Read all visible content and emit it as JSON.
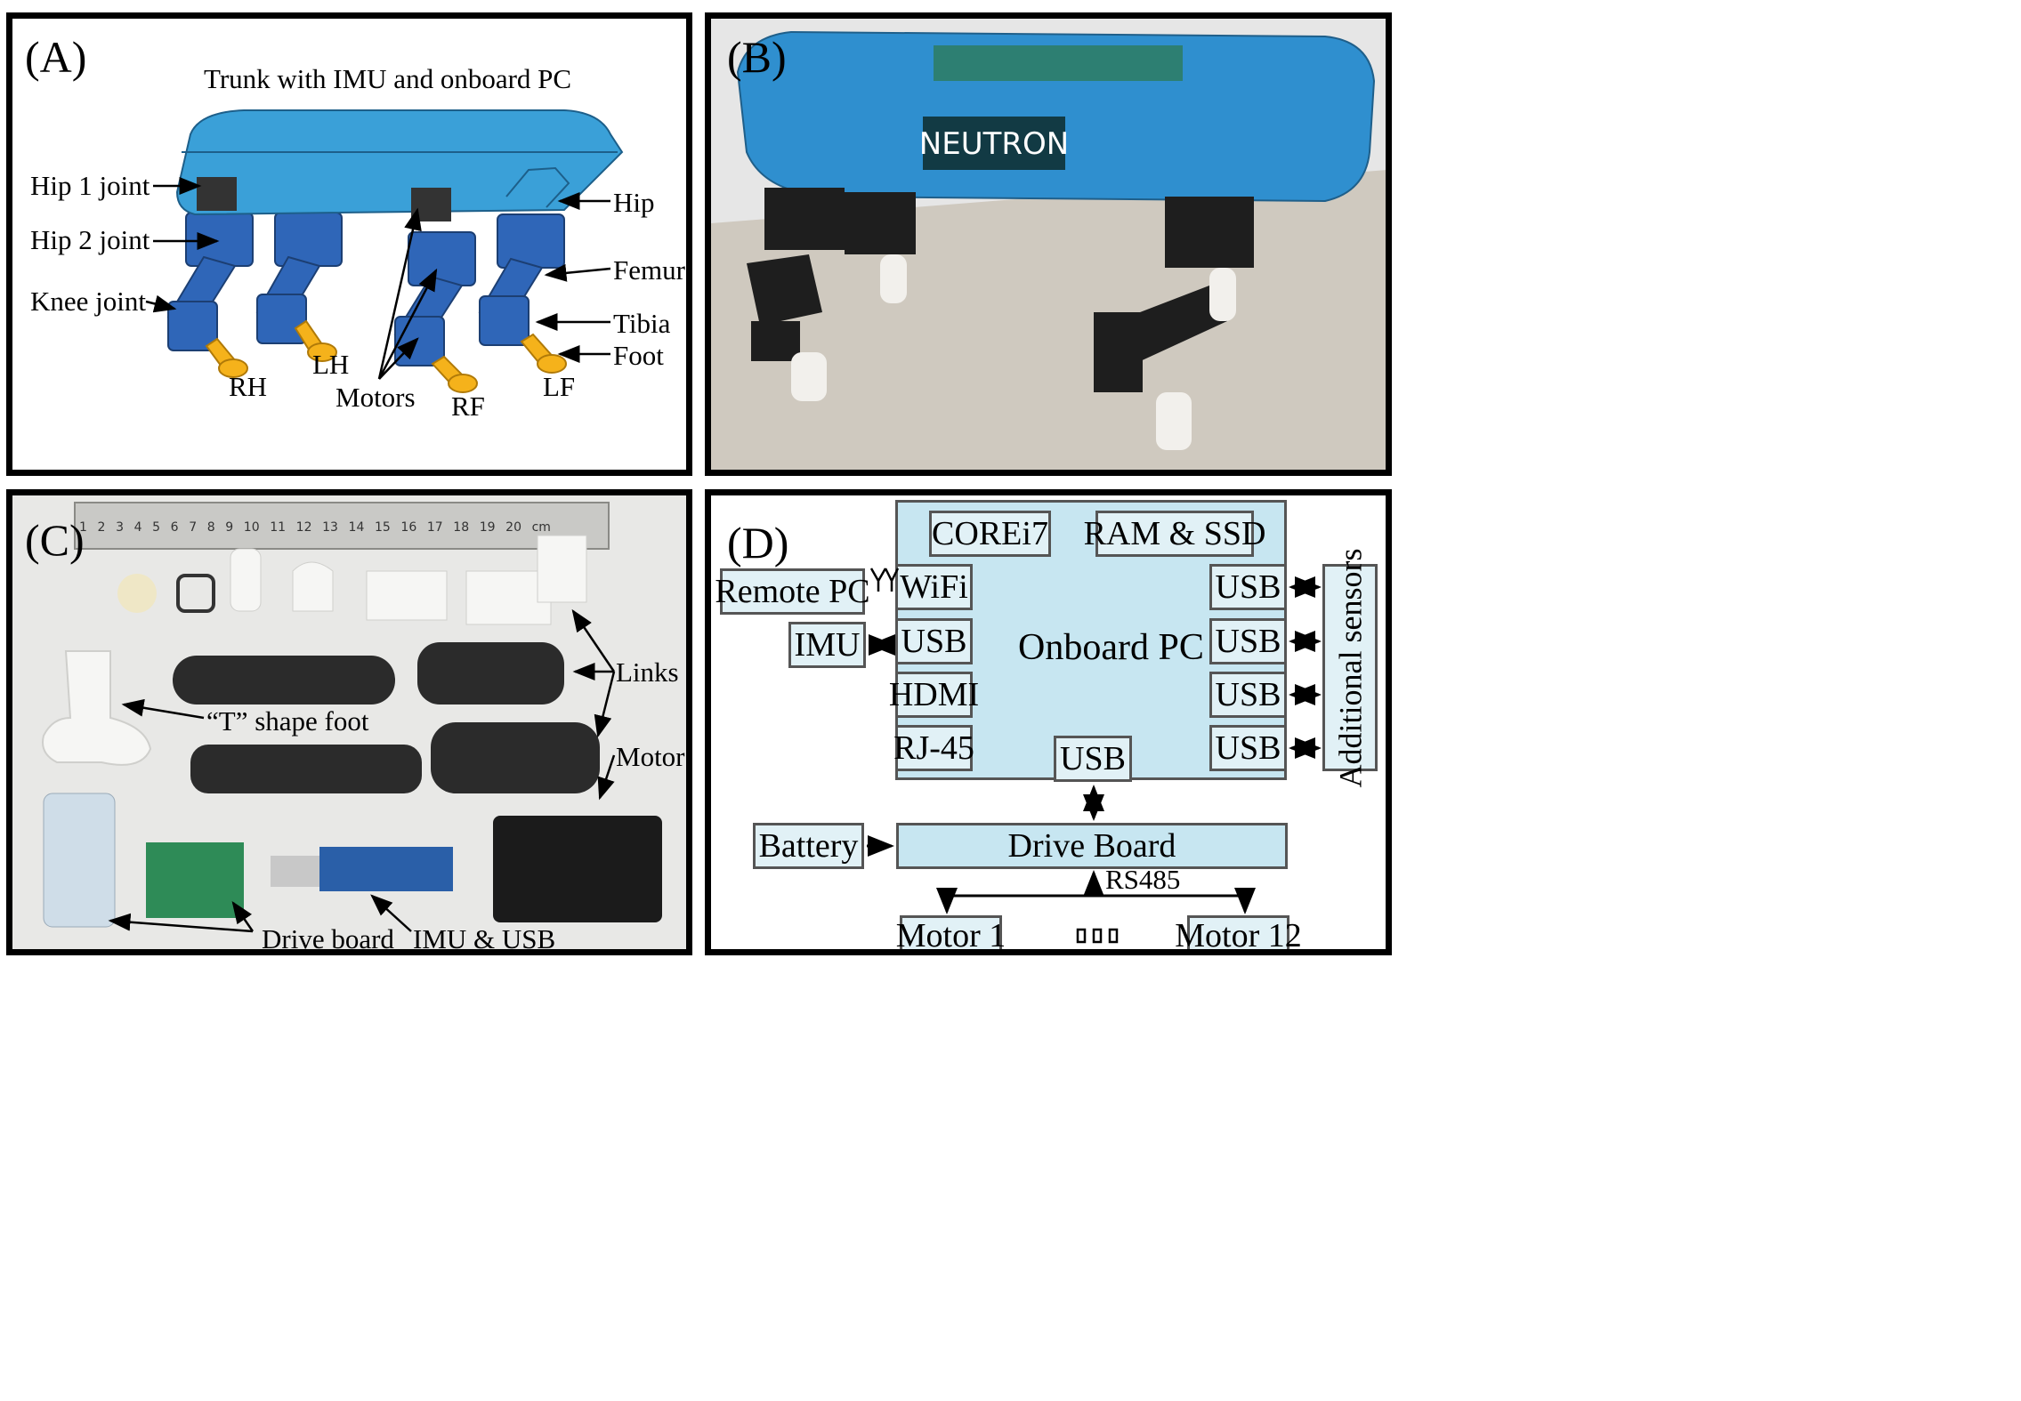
{
  "panels": {
    "a": {
      "tag": "(A)",
      "title": "Trunk with IMU and onboard PC",
      "labels": {
        "hip1": "Hip 1 joint",
        "hip2": "Hip 2 joint",
        "knee": "Knee joint",
        "hip": "Hip",
        "femur": "Femur",
        "tibia": "Tibia",
        "foot": "Foot",
        "rh": "RH",
        "lh": "LH",
        "motors": "Motors",
        "rf": "RF",
        "lf": "LF"
      },
      "colors": {
        "trunk": "#3aa0d8",
        "joint": "#2f66b8",
        "foot": "#f5b21b"
      }
    },
    "b": {
      "tag": "(B)",
      "logo_text": "NEUTRON",
      "colors": {
        "shell": "#2f8fcf",
        "floor": "#cfc9bf",
        "wall": "#e6e6e6"
      }
    },
    "c": {
      "tag": "(C)",
      "ruler_ticks": [
        "1",
        "2",
        "3",
        "4",
        "5",
        "6",
        "7",
        "8",
        "9",
        "10",
        "11",
        "12",
        "13",
        "14",
        "15",
        "16",
        "17",
        "18",
        "19",
        "20",
        "cm"
      ],
      "labels": {
        "links": "Links",
        "t_foot": "“T” shape foot",
        "motor": "Motor",
        "drive_board": "Drive board",
        "imu_usb": "IMU & USB"
      }
    },
    "d": {
      "tag": "(D)",
      "onboard_pc": "Onboard PC",
      "corei7": "COREi7",
      "ram_ssd": "RAM & SSD",
      "remote_pc": "Remote PC",
      "wifi": "WiFi",
      "imu": "IMU",
      "usb": "USB",
      "hdmi": "HDMI",
      "rj45": "RJ-45",
      "additional_sensors": "Additional sensors",
      "battery": "Battery",
      "drive_board": "Drive Board",
      "rs485": "RS485",
      "motor1": "Motor 1",
      "motor12": "Motor 12",
      "colors": {
        "pc_fill": "#c7e6f1",
        "box_fill": "#e1f1f6",
        "border": "#555555"
      }
    }
  }
}
